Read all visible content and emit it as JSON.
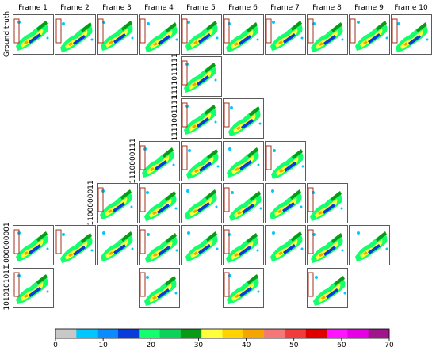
{
  "columns": [
    "Frame 1",
    "Frame 2",
    "Frame 3",
    "Frame 4",
    "Frame 5",
    "Frame 6",
    "Frame 7",
    "Frame 8",
    "Frame 9",
    "Frame 10"
  ],
  "rows": [
    "Ground truth",
    "1111011111",
    "1111001111",
    "1110000111",
    "1100000011",
    "1000000001",
    "1010101011"
  ],
  "colorbar": {
    "lim": [
      0,
      70
    ],
    "ticks": [
      0,
      10,
      20,
      30,
      40,
      50,
      60,
      70
    ],
    "colors": [
      "#c8c8c8",
      "#00c8ff",
      "#0a8cff",
      "#0a3cdc",
      "#14ff6e",
      "#0ad25a",
      "#0a9b14",
      "#ffff3c",
      "#ffd200",
      "#f5a500",
      "#f57878",
      "#f03c3c",
      "#e10000",
      "#ff14ff",
      "#e600e6",
      "#a0148c"
    ]
  }
}
